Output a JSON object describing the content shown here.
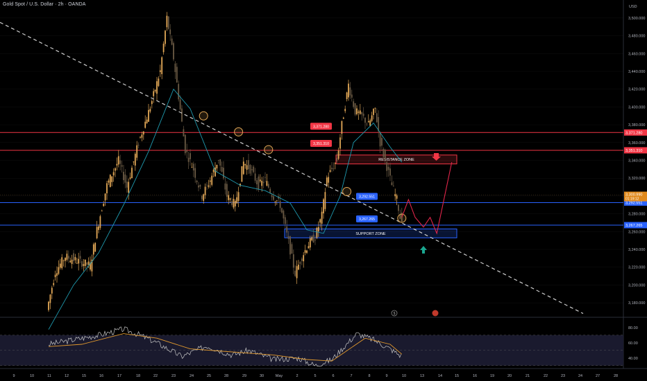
{
  "header": {
    "title": "Gold Spot / U.S. Dollar · 2h · OANDA",
    "currency": "USD"
  },
  "colors": {
    "background": "#000000",
    "bull_candle": "#e3a857",
    "bear_candle": "#6b5a44",
    "ma_line": "#1f9bb0",
    "trendline": "#cfcfcf",
    "resistance_line": "#f23645",
    "support_line": "#2962ff",
    "projection": "#e0254a",
    "rsi_line": "#c7c7c7",
    "rsi_ma": "#e39a2d",
    "rsi_band": "#1a1a2e"
  },
  "levels": {
    "resistance_high": "3,371.280",
    "resistance_low": "3,351.310",
    "support_high": "3,292.551",
    "support_low": "3,267.265",
    "current_price": "3,300.990",
    "countdown": "01:19:12"
  },
  "zones": {
    "resistance": "RESISTANCE ZONE",
    "support": "SUPPORT ZONE"
  },
  "icons": {
    "down_arrow": "arrow-down-icon",
    "up_arrow": "arrow-up-icon",
    "event_1": "economic-event-icon",
    "event_2": "flag-event-icon"
  },
  "chart_data": [
    {
      "type": "candlestick",
      "symbol": "XAUUSD",
      "timeframe": "2h",
      "ylim": [
        3170,
        3510
      ],
      "y_ticks": [
        "3,500.000",
        "3,480.000",
        "3,460.000",
        "3,440.000",
        "3,420.000",
        "3,400.000",
        "3,380.000",
        "3,360.000",
        "3,340.000",
        "3,320.000",
        "3,300.000",
        "3,280.000",
        "3,260.000",
        "3,240.000",
        "3,220.000",
        "3,200.000",
        "3,180.000"
      ],
      "x_ticks": [
        "9",
        "10",
        "11",
        "12",
        "15",
        "16",
        "17",
        "18",
        "22",
        "23",
        "24",
        "25",
        "28",
        "29",
        "30",
        "May",
        "2",
        "5",
        "6",
        "7",
        "8",
        "9",
        "10",
        "13",
        "14",
        "15",
        "16",
        "19",
        "20",
        "21",
        "22",
        "23",
        "24",
        "27",
        "28"
      ],
      "price_path": [
        [
          0,
          3172
        ],
        [
          10,
          3215
        ],
        [
          22,
          3232
        ],
        [
          40,
          3226
        ],
        [
          52,
          3222
        ],
        [
          60,
          3262
        ],
        [
          72,
          3312
        ],
        [
          86,
          3340
        ],
        [
          96,
          3310
        ],
        [
          110,
          3360
        ],
        [
          124,
          3400
        ],
        [
          136,
          3440
        ],
        [
          144,
          3500
        ],
        [
          152,
          3455
        ],
        [
          158,
          3412
        ],
        [
          166,
          3352
        ],
        [
          176,
          3330
        ],
        [
          186,
          3300
        ],
        [
          196,
          3318
        ],
        [
          206,
          3342
        ],
        [
          216,
          3300
        ],
        [
          226,
          3290
        ],
        [
          236,
          3338
        ],
        [
          244,
          3330
        ],
        [
          254,
          3312
        ],
        [
          262,
          3318
        ],
        [
          270,
          3302
        ],
        [
          280,
          3290
        ],
        [
          290,
          3248
        ],
        [
          298,
          3213
        ],
        [
          306,
          3232
        ],
        [
          314,
          3246
        ],
        [
          322,
          3254
        ],
        [
          330,
          3278
        ],
        [
          336,
          3320
        ],
        [
          342,
          3330
        ],
        [
          348,
          3340
        ],
        [
          354,
          3380
        ],
        [
          362,
          3425
        ],
        [
          370,
          3395
        ],
        [
          378,
          3390
        ],
        [
          386,
          3380
        ],
        [
          394,
          3398
        ],
        [
          400,
          3360
        ],
        [
          406,
          3340
        ],
        [
          414,
          3312
        ],
        [
          420,
          3296
        ],
        [
          424,
          3276
        ]
      ],
      "ma_path": [
        [
          0,
          3150
        ],
        [
          30,
          3200
        ],
        [
          60,
          3236
        ],
        [
          90,
          3290
        ],
        [
          120,
          3350
        ],
        [
          150,
          3420
        ],
        [
          170,
          3398
        ],
        [
          200,
          3328
        ],
        [
          230,
          3312
        ],
        [
          260,
          3306
        ],
        [
          290,
          3292
        ],
        [
          310,
          3262
        ],
        [
          330,
          3258
        ],
        [
          350,
          3300
        ],
        [
          366,
          3360
        ],
        [
          390,
          3382
        ],
        [
          410,
          3355
        ],
        [
          424,
          3338
        ]
      ],
      "trendline": [
        [
          0,
          3495
        ],
        [
          650,
          3168
        ]
      ],
      "projection": [
        [
          424,
          3276
        ],
        [
          432,
          3296
        ],
        [
          440,
          3276
        ],
        [
          450,
          3265
        ],
        [
          458,
          3276
        ],
        [
          466,
          3258
        ],
        [
          484,
          3338
        ]
      ],
      "circles": [
        [
          186,
          3390
        ],
        [
          228,
          3372
        ],
        [
          264,
          3352
        ],
        [
          358,
          3305
        ],
        [
          424,
          3275
        ]
      ]
    },
    {
      "type": "line",
      "title": "RSI",
      "ylim": [
        28,
        88
      ],
      "y_ticks": [
        "80.00",
        "60.00",
        "40.00"
      ],
      "bands": [
        70,
        50,
        30
      ],
      "rsi_path": [
        [
          0,
          58
        ],
        [
          30,
          64
        ],
        [
          60,
          70
        ],
        [
          90,
          78
        ],
        [
          110,
          70
        ],
        [
          130,
          60
        ],
        [
          160,
          42
        ],
        [
          190,
          56
        ],
        [
          220,
          44
        ],
        [
          240,
          50
        ],
        [
          270,
          38
        ],
        [
          300,
          40
        ],
        [
          320,
          30
        ],
        [
          340,
          38
        ],
        [
          370,
          72
        ],
        [
          390,
          64
        ],
        [
          410,
          52
        ],
        [
          424,
          42
        ]
      ],
      "ma_path": [
        [
          0,
          55
        ],
        [
          40,
          58
        ],
        [
          90,
          72
        ],
        [
          130,
          66
        ],
        [
          170,
          52
        ],
        [
          220,
          48
        ],
        [
          270,
          44
        ],
        [
          310,
          38
        ],
        [
          340,
          36
        ],
        [
          380,
          66
        ],
        [
          410,
          58
        ],
        [
          424,
          45
        ]
      ]
    }
  ]
}
